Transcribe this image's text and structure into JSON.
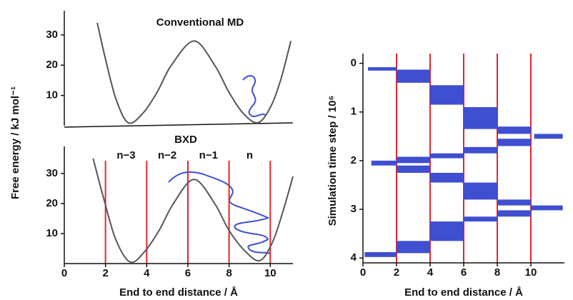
{
  "chart_data": [
    {
      "type": "line",
      "title": "Conventional MD",
      "ylabel": "Free energy / kJ mol⁻¹",
      "x": [
        1.6,
        2.0,
        2.5,
        3.1,
        3.8,
        4.5,
        5.2,
        6.3,
        7.3,
        8.0,
        8.7,
        9.4,
        10.0,
        10.5,
        11.0
      ],
      "values": [
        34,
        22,
        9,
        1,
        4,
        11,
        20,
        28,
        20,
        11,
        4,
        1,
        6,
        15,
        28
      ],
      "color": "#555555",
      "xlim": [
        0,
        11.1
      ],
      "ylim": [
        0,
        38
      ],
      "yticks": [
        10,
        20,
        30
      ]
    },
    {
      "type": "line",
      "title": "BXD",
      "xlabel": "End to end distance  / Å",
      "x": [
        1.4,
        1.9,
        2.5,
        3.2,
        3.9,
        4.6,
        5.3,
        6.3,
        7.3,
        8.0,
        8.8,
        9.5,
        10.1,
        10.6,
        11.1
      ],
      "values": [
        35,
        22,
        8,
        0.5,
        4,
        11,
        20,
        28,
        20,
        11,
        4,
        1,
        7,
        17,
        29
      ],
      "color": "#555555",
      "xlim": [
        0,
        11.1
      ],
      "ylim": [
        0,
        39
      ],
      "xticks": [
        0,
        2,
        4,
        6,
        8,
        10
      ],
      "yticks": [
        10,
        20,
        30
      ],
      "boundaries": [
        2,
        4,
        6,
        8,
        10
      ],
      "boundary_color": "#e8252a",
      "box_labels": [
        "n−3",
        "n−2",
        "n−1",
        "n"
      ]
    },
    {
      "type": "range-bar",
      "xlabel": "End to end distance  / Å",
      "ylabel": "Simulation time step / 10⁶",
      "color": "#3f4fd0",
      "xlim": [
        0,
        12
      ],
      "ylim": [
        4.1,
        -0.2
      ],
      "xticks": [
        0,
        2,
        4,
        6,
        8,
        10
      ],
      "yticks": [
        0,
        1,
        2,
        3,
        4
      ],
      "boundaries": [
        2,
        4,
        6,
        8,
        10
      ],
      "boundary_color": "#e8252a",
      "bars": [
        {
          "x0": 0.3,
          "x1": 2,
          "t0": 0.08,
          "t1": 0.15
        },
        {
          "x0": 2,
          "x1": 4,
          "t0": 0.13,
          "t1": 0.4
        },
        {
          "x0": 4,
          "x1": 6,
          "t0": 0.45,
          "t1": 0.85
        },
        {
          "x0": 6,
          "x1": 8,
          "t0": 0.9,
          "t1": 1.35
        },
        {
          "x0": 8,
          "x1": 10,
          "t0": 1.3,
          "t1": 1.45
        },
        {
          "x0": 10.2,
          "x1": 11.9,
          "t0": 1.45,
          "t1": 1.55
        },
        {
          "x0": 8,
          "x1": 10,
          "t0": 1.55,
          "t1": 1.7
        },
        {
          "x0": 6,
          "x1": 8,
          "t0": 1.72,
          "t1": 1.85
        },
        {
          "x0": 4,
          "x1": 6,
          "t0": 1.85,
          "t1": 1.95
        },
        {
          "x0": 2,
          "x1": 4,
          "t0": 1.92,
          "t1": 2.05
        },
        {
          "x0": 0.5,
          "x1": 2,
          "t0": 2.0,
          "t1": 2.1
        },
        {
          "x0": 2,
          "x1": 4,
          "t0": 2.1,
          "t1": 2.25
        },
        {
          "x0": 4,
          "x1": 6,
          "t0": 2.25,
          "t1": 2.45
        },
        {
          "x0": 6,
          "x1": 8,
          "t0": 2.45,
          "t1": 2.8
        },
        {
          "x0": 8,
          "x1": 10,
          "t0": 2.8,
          "t1": 2.92
        },
        {
          "x0": 10,
          "x1": 11.9,
          "t0": 2.92,
          "t1": 3.02
        },
        {
          "x0": 8,
          "x1": 10,
          "t0": 3.02,
          "t1": 3.15
        },
        {
          "x0": 6,
          "x1": 8,
          "t0": 3.15,
          "t1": 3.25
        },
        {
          "x0": 4,
          "x1": 6,
          "t0": 3.25,
          "t1": 3.65
        },
        {
          "x0": 2,
          "x1": 4,
          "t0": 3.65,
          "t1": 3.9
        },
        {
          "x0": 0.1,
          "x1": 2,
          "t0": 3.88,
          "t1": 3.98
        }
      ]
    }
  ]
}
